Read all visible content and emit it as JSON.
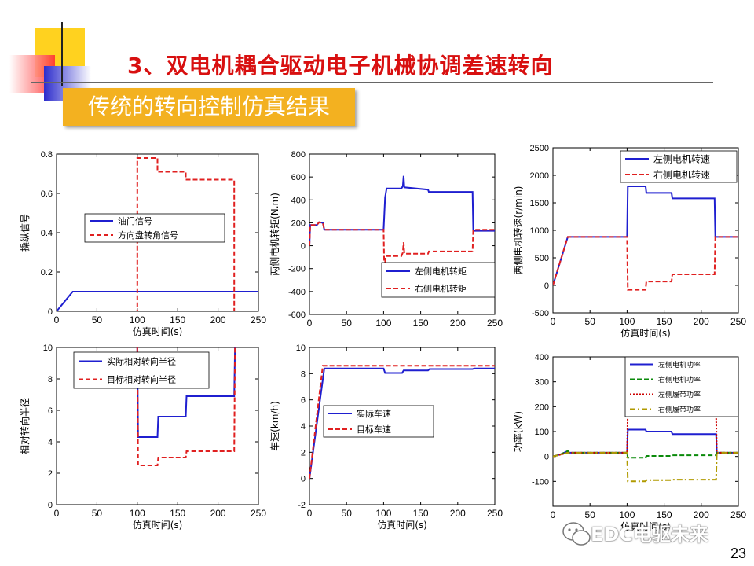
{
  "slide": {
    "title": "3、双电机耦合驱动电子机械协调差速转向",
    "subtitle": "传统的转向控制仿真结果",
    "page_number": "23",
    "watermark": "EDC电驱未来"
  },
  "colors": {
    "blue": "#1f1fd0",
    "red": "#e02020",
    "green": "#0a8a0a",
    "dark_red": "#cc0000",
    "olive": "#b09a00",
    "title_red": "#d81010",
    "banner": "#f3b120"
  },
  "chart_data": [
    {
      "type": "line",
      "xlabel": "仿真时间(s)",
      "ylabel": "操纵信号",
      "xlim": [
        0,
        250
      ],
      "ylim": [
        0,
        0.8
      ],
      "xticks": [
        "0",
        "50",
        "100",
        "150",
        "200",
        "250"
      ],
      "yticks": [
        "0",
        "0.2",
        "0.4",
        "0.6",
        "0.8"
      ],
      "legend": "center-left",
      "series": [
        {
          "name": "油门信号",
          "color": "#1f1fd0",
          "dash": "solid",
          "points": [
            [
              0,
              0
            ],
            [
              20,
              0.1
            ],
            [
              250,
              0.1
            ]
          ]
        },
        {
          "name": "方向盘转角信号",
          "color": "#e02020",
          "dash": "dashed",
          "points": [
            [
              0,
              0
            ],
            [
              100,
              0
            ],
            [
              100,
              0.78
            ],
            [
              125,
              0.78
            ],
            [
              125,
              0.71
            ],
            [
              160,
              0.71
            ],
            [
              160,
              0.67
            ],
            [
              220,
              0.67
            ],
            [
              220,
              0
            ],
            [
              250,
              0
            ]
          ]
        }
      ]
    },
    {
      "type": "line",
      "xlabel": "",
      "ylabel": "两侧电机转矩(N.m)",
      "xlim": [
        0,
        250
      ],
      "ylim": [
        -600,
        800
      ],
      "xticks": [
        "0",
        "50",
        "100",
        "150",
        "200",
        "250"
      ],
      "yticks": [
        "-600",
        "-400",
        "-200",
        "0",
        "200",
        "400",
        "600",
        "800"
      ],
      "legend": "bottom-right",
      "series": [
        {
          "name": "左侧电机转矩",
          "color": "#1f1fd0",
          "dash": "solid",
          "points": [
            [
              0,
              0
            ],
            [
              1,
              180
            ],
            [
              10,
              180
            ],
            [
              13,
              205
            ],
            [
              18,
              200
            ],
            [
              20,
              140
            ],
            [
              98,
              140
            ],
            [
              100,
              140
            ],
            [
              102,
              420
            ],
            [
              104,
              500
            ],
            [
              124,
              500
            ],
            [
              126,
              520
            ],
            [
              127,
              610
            ],
            [
              128,
              510
            ],
            [
              160,
              490
            ],
            [
              161,
              470
            ],
            [
              220,
              470
            ],
            [
              221,
              130
            ],
            [
              250,
              130
            ]
          ]
        },
        {
          "name": "右侧电机转矩",
          "color": "#e02020",
          "dash": "dashed",
          "points": [
            [
              0,
              0
            ],
            [
              1,
              180
            ],
            [
              10,
              180
            ],
            [
              13,
              205
            ],
            [
              18,
              200
            ],
            [
              20,
              140
            ],
            [
              98,
              140
            ],
            [
              100,
              140
            ],
            [
              101,
              -210
            ],
            [
              103,
              -90
            ],
            [
              124,
              -90
            ],
            [
              126,
              -60
            ],
            [
              127,
              30
            ],
            [
              128,
              -70
            ],
            [
              160,
              -70
            ],
            [
              161,
              -50
            ],
            [
              220,
              -50
            ],
            [
              221,
              140
            ],
            [
              250,
              140
            ]
          ]
        }
      ]
    },
    {
      "type": "line",
      "xlabel": "仿真时间(s)",
      "ylabel": "两侧电机转速(r/min)",
      "xlim": [
        0,
        250
      ],
      "ylim": [
        -500,
        2500
      ],
      "xticks": [
        "0",
        "50",
        "100",
        "150",
        "200",
        "250"
      ],
      "yticks": [
        "-500",
        "0",
        "500",
        "1000",
        "1500",
        "2000",
        "2500"
      ],
      "legend": "top-right",
      "series": [
        {
          "name": "左侧电机转速",
          "color": "#1f1fd0",
          "dash": "solid",
          "points": [
            [
              0,
              0
            ],
            [
              20,
              880
            ],
            [
              100,
              880
            ],
            [
              101,
              1800
            ],
            [
              125,
              1800
            ],
            [
              126,
              1680
            ],
            [
              160,
              1680
            ],
            [
              161,
              1580
            ],
            [
              218,
              1580
            ],
            [
              219,
              880
            ],
            [
              250,
              880
            ]
          ]
        },
        {
          "name": "右侧电机转速",
          "color": "#e02020",
          "dash": "dashed",
          "points": [
            [
              0,
              0
            ],
            [
              20,
              880
            ],
            [
              100,
              880
            ],
            [
              101,
              -80
            ],
            [
              125,
              -80
            ],
            [
              126,
              70
            ],
            [
              160,
              70
            ],
            [
              161,
              200
            ],
            [
              218,
              200
            ],
            [
              219,
              880
            ],
            [
              250,
              880
            ]
          ]
        }
      ]
    },
    {
      "type": "line",
      "xlabel": "仿真时间(s)",
      "ylabel": "相对转向半径",
      "xlim": [
        0,
        250
      ],
      "ylim": [
        0,
        10
      ],
      "xticks": [
        "0",
        "50",
        "100",
        "150",
        "200",
        "250"
      ],
      "yticks": [
        "0",
        "2",
        "4",
        "6",
        "8",
        "10"
      ],
      "legend": "top-left",
      "series": [
        {
          "name": "实际相对转向半径",
          "color": "#1f1fd0",
          "dash": "solid",
          "points": [
            [
              100,
              10
            ],
            [
              101,
              4.3
            ],
            [
              125,
              4.3
            ],
            [
              126,
              5.6
            ],
            [
              160,
              5.6
            ],
            [
              161,
              6.9
            ],
            [
              220,
              6.9
            ],
            [
              221,
              10
            ]
          ]
        },
        {
          "name": "目标相对转向半径",
          "color": "#e02020",
          "dash": "dashed",
          "points": [
            [
              100,
              10
            ],
            [
              101,
              2.5
            ],
            [
              125,
              2.5
            ],
            [
              126,
              3.0
            ],
            [
              160,
              3.0
            ],
            [
              161,
              3.4
            ],
            [
              220,
              3.4
            ],
            [
              221,
              10
            ]
          ]
        }
      ]
    },
    {
      "type": "line",
      "xlabel": "仿真时间(s)",
      "ylabel": "车速(km/h)",
      "xlim": [
        0,
        250
      ],
      "ylim": [
        -2,
        10
      ],
      "xticks": [
        "0",
        "50",
        "100",
        "150",
        "200",
        "250"
      ],
      "yticks": [
        "-2",
        "0",
        "2",
        "4",
        "6",
        "8",
        "10"
      ],
      "legend": "center-right",
      "series": [
        {
          "name": "实际车速",
          "color": "#1f1fd0",
          "dash": "solid",
          "points": [
            [
              0,
              0
            ],
            [
              20,
              8.4
            ],
            [
              100,
              8.4
            ],
            [
              102,
              8.05
            ],
            [
              125,
              8.05
            ],
            [
              127,
              8.25
            ],
            [
              160,
              8.25
            ],
            [
              162,
              8.35
            ],
            [
              220,
              8.35
            ],
            [
              222,
              8.4
            ],
            [
              250,
              8.4
            ]
          ]
        },
        {
          "name": "目标车速",
          "color": "#e02020",
          "dash": "dashed",
          "points": [
            [
              0,
              0
            ],
            [
              18,
              8.6
            ],
            [
              250,
              8.6
            ]
          ]
        }
      ]
    },
    {
      "type": "line",
      "xlabel": "仿真时间(s)",
      "ylabel": "功率(kW)",
      "xlim": [
        0,
        250
      ],
      "ylim": [
        -200,
        400
      ],
      "xticks": [
        "0",
        "50",
        "100",
        "150",
        "200",
        "250"
      ],
      "yticks": [
        "-100",
        "0",
        "100",
        "200",
        "300",
        "400"
      ],
      "legend": "top-right",
      "series": [
        {
          "name": "左侧电机功率",
          "color": "#1f1fd0",
          "dash": "solid",
          "points": [
            [
              0,
              0
            ],
            [
              10,
              8
            ],
            [
              20,
              22
            ],
            [
              22,
              15
            ],
            [
              100,
              15
            ],
            [
              101,
              108
            ],
            [
              125,
              108
            ],
            [
              126,
              100
            ],
            [
              160,
              100
            ],
            [
              161,
              90
            ],
            [
              220,
              90
            ],
            [
              221,
              15
            ],
            [
              250,
              15
            ]
          ]
        },
        {
          "name": "右侧电机功率",
          "color": "#0a8a0a",
          "dash": "dashed",
          "points": [
            [
              0,
              0
            ],
            [
              10,
              8
            ],
            [
              20,
              22
            ],
            [
              22,
              15
            ],
            [
              100,
              15
            ],
            [
              101,
              -5
            ],
            [
              125,
              -5
            ],
            [
              126,
              2
            ],
            [
              160,
              2
            ],
            [
              161,
              5
            ],
            [
              220,
              5
            ],
            [
              221,
              15
            ],
            [
              250,
              15
            ]
          ]
        },
        {
          "name": "左侧履带功率",
          "color": "#cc0000",
          "dash": "dotted",
          "points": [
            [
              0,
              0
            ],
            [
              20,
              15
            ],
            [
              100,
              15
            ],
            [
              101,
              195
            ],
            [
              125,
              195
            ],
            [
              126,
              180
            ],
            [
              160,
              180
            ],
            [
              161,
              170
            ],
            [
              220,
              170
            ],
            [
              221,
              15
            ],
            [
              250,
              15
            ]
          ]
        },
        {
          "name": "右侧履带功率",
          "color": "#b09a00",
          "dash": "dashdot",
          "points": [
            [
              0,
              0
            ],
            [
              20,
              15
            ],
            [
              100,
              15
            ],
            [
              101,
              -100
            ],
            [
              125,
              -100
            ],
            [
              126,
              -95
            ],
            [
              160,
              -95
            ],
            [
              161,
              -93
            ],
            [
              220,
              -93
            ],
            [
              221,
              15
            ],
            [
              250,
              15
            ]
          ]
        }
      ]
    }
  ]
}
